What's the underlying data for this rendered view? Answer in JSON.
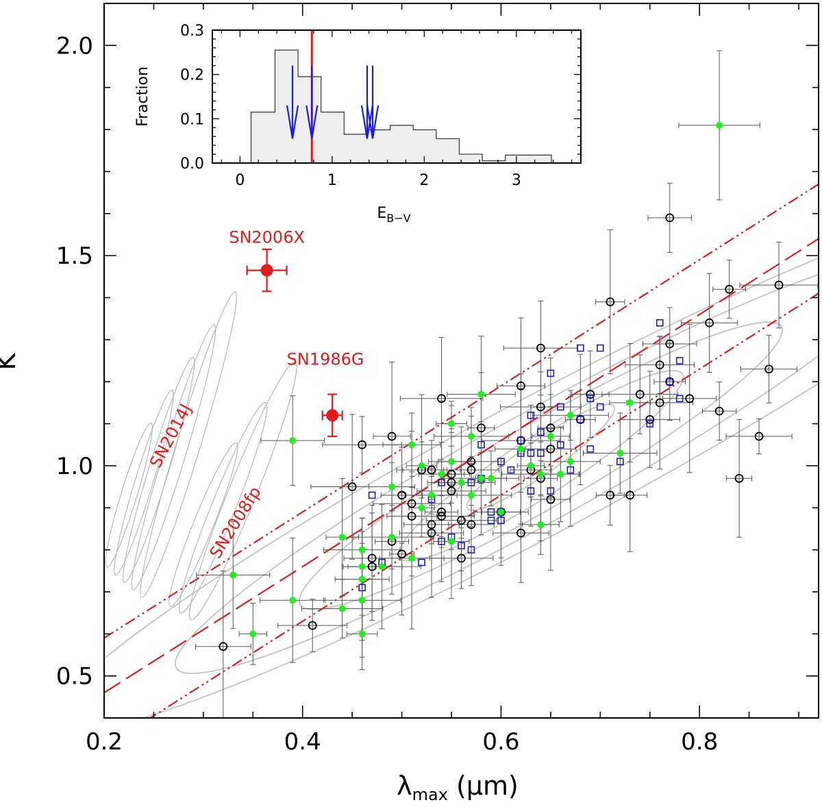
{
  "chart_data": {
    "type": "scatter",
    "xlabel": "λmax (μm)",
    "xlabel_main": "λ",
    "xlabel_sub": "max",
    "xlabel_unit": "(μm)",
    "ylabel": "K",
    "xlim": [
      0.2,
      0.92
    ],
    "ylim": [
      0.4,
      2.1
    ],
    "xticks": [
      0.2,
      0.4,
      0.6,
      0.8
    ],
    "xtick_labels": [
      "0.2",
      "0.4",
      "0.6",
      "0.8"
    ],
    "yticks": [
      0.5,
      1.0,
      1.5,
      2.0
    ],
    "ytick_labels": [
      "0.5",
      "1.0",
      "1.5",
      "2.0"
    ],
    "colors": {
      "red": "#e41a1c",
      "blue": "#1a1acc",
      "green": "#22ee22",
      "grey": "#c8c8c8",
      "inset_fill": "#eeeeee",
      "inset_arrow": "#1a1aee"
    },
    "annotations": [
      {
        "text": "SN2006X",
        "x": 0.364,
        "y": 1.53,
        "rotate": 0
      },
      {
        "text": "SN1986G",
        "x": 0.423,
        "y": 1.24,
        "rotate": 0
      },
      {
        "text": "SN2014J",
        "x": 0.272,
        "y": 1.065,
        "rotate": -62
      },
      {
        "text": "SN2008fp",
        "x": 0.337,
        "y": 0.858,
        "rotate": -58
      }
    ],
    "highlight_points": [
      {
        "name": "SN2006X",
        "x": 0.364,
        "y": 1.465,
        "xerr": 0.02,
        "yerr": 0.05
      },
      {
        "name": "SN1986G",
        "x": 0.43,
        "y": 1.12,
        "xerr": 0.01,
        "yerr": 0.05
      }
    ],
    "lines": {
      "central": {
        "style": "long-dash",
        "slope": 1.5,
        "intercept": 0.16
      },
      "bounds": [
        {
          "style": "dash-dot-dot",
          "slope": 1.5,
          "intercept": 0.29
        },
        {
          "style": "dash-dot-dot",
          "slope": 1.5,
          "intercept": 0.03
        }
      ]
    },
    "contours": [
      {
        "cx": 0.64,
        "cy": 1.02,
        "rx": 0.09,
        "ry": 0.04,
        "angle": 35
      },
      {
        "cx": 0.64,
        "cy": 1.0,
        "rx": 0.17,
        "ry": 0.07,
        "angle": 33
      },
      {
        "cx": 0.64,
        "cy": 1.0,
        "rx": 0.28,
        "ry": 0.1,
        "angle": 30
      },
      {
        "cx": 0.64,
        "cy": 1.0,
        "rx": 0.42,
        "ry": 0.13,
        "angle": 29
      },
      {
        "cx": 0.64,
        "cy": 1.0,
        "rx": 0.56,
        "ry": 0.16,
        "angle": 28
      }
    ],
    "series": [
      {
        "name": "open circles",
        "marker": "open-circle",
        "points": [
          [
            0.32,
            0.57
          ],
          [
            0.41,
            0.62
          ],
          [
            0.45,
            0.95
          ],
          [
            0.46,
            1.05
          ],
          [
            0.47,
            0.78
          ],
          [
            0.47,
            0.76
          ],
          [
            0.49,
            0.82
          ],
          [
            0.49,
            1.07
          ],
          [
            0.5,
            0.79
          ],
          [
            0.5,
            0.93
          ],
          [
            0.51,
            0.88
          ],
          [
            0.51,
            0.91
          ],
          [
            0.52,
            0.99
          ],
          [
            0.53,
            0.99
          ],
          [
            0.53,
            0.86
          ],
          [
            0.53,
            0.84
          ],
          [
            0.54,
            0.88
          ],
          [
            0.54,
            0.89
          ],
          [
            0.54,
            1.16
          ],
          [
            0.55,
            0.96
          ],
          [
            0.55,
            0.94
          ],
          [
            0.55,
            0.98
          ],
          [
            0.56,
            0.87
          ],
          [
            0.56,
            0.78
          ],
          [
            0.57,
            1.01
          ],
          [
            0.57,
            0.99
          ],
          [
            0.57,
            0.86
          ],
          [
            0.58,
            1.09
          ],
          [
            0.6,
            0.89
          ],
          [
            0.62,
            0.84
          ],
          [
            0.62,
            1.06
          ],
          [
            0.62,
            1.19
          ],
          [
            0.63,
            0.99
          ],
          [
            0.64,
            0.97
          ],
          [
            0.64,
            1.14
          ],
          [
            0.64,
            1.28
          ],
          [
            0.65,
            1.09
          ],
          [
            0.65,
            1.04
          ],
          [
            0.65,
            0.92
          ],
          [
            0.68,
            1.11
          ],
          [
            0.69,
            1.17
          ],
          [
            0.71,
            1.39
          ],
          [
            0.71,
            0.93
          ],
          [
            0.73,
            0.93
          ],
          [
            0.74,
            1.17
          ],
          [
            0.75,
            1.11
          ],
          [
            0.76,
            1.15
          ],
          [
            0.76,
            1.24
          ],
          [
            0.77,
            1.2
          ],
          [
            0.77,
            1.29
          ],
          [
            0.77,
            1.59
          ],
          [
            0.79,
            1.16
          ],
          [
            0.81,
            1.34
          ],
          [
            0.82,
            1.13
          ],
          [
            0.83,
            1.42
          ],
          [
            0.84,
            0.97
          ],
          [
            0.86,
            1.07
          ],
          [
            0.87,
            1.23
          ],
          [
            0.88,
            1.43
          ]
        ]
      },
      {
        "name": "open squares",
        "marker": "open-square",
        "points": [
          [
            0.46,
            0.71
          ],
          [
            0.47,
            0.93
          ],
          [
            0.48,
            0.77
          ],
          [
            0.52,
            0.77
          ],
          [
            0.53,
            0.92
          ],
          [
            0.54,
            0.82
          ],
          [
            0.54,
            0.96
          ],
          [
            0.55,
            0.83
          ],
          [
            0.56,
            0.81
          ],
          [
            0.57,
            0.8
          ],
          [
            0.57,
            0.96
          ],
          [
            0.58,
            0.97
          ],
          [
            0.58,
            1.05
          ],
          [
            0.59,
            0.89
          ],
          [
            0.59,
            0.87
          ],
          [
            0.6,
            0.87
          ],
          [
            0.6,
            0.89
          ],
          [
            0.6,
            1.01
          ],
          [
            0.61,
            0.99
          ],
          [
            0.62,
            1.03
          ],
          [
            0.62,
            1.06
          ],
          [
            0.63,
            0.94
          ],
          [
            0.63,
            1.03
          ],
          [
            0.63,
            1.12
          ],
          [
            0.64,
            1.08
          ],
          [
            0.64,
            1.03
          ],
          [
            0.65,
            0.94
          ],
          [
            0.65,
            1.22
          ],
          [
            0.66,
            1.14
          ],
          [
            0.66,
            1.05
          ],
          [
            0.67,
            0.99
          ],
          [
            0.68,
            1.28
          ],
          [
            0.68,
            1.11
          ],
          [
            0.69,
            1.04
          ],
          [
            0.69,
            1.16
          ],
          [
            0.7,
            1.14
          ],
          [
            0.7,
            1.28
          ],
          [
            0.72,
            1.01
          ],
          [
            0.75,
            1.1
          ],
          [
            0.76,
            1.34
          ],
          [
            0.77,
            1.2
          ],
          [
            0.78,
            1.25
          ],
          [
            0.78,
            1.16
          ]
        ]
      },
      {
        "name": "filled circles",
        "marker": "filled-circle",
        "points": [
          [
            0.33,
            0.74
          ],
          [
            0.35,
            0.6
          ],
          [
            0.39,
            0.68
          ],
          [
            0.39,
            1.06
          ],
          [
            0.44,
            0.66
          ],
          [
            0.44,
            0.83
          ],
          [
            0.46,
            0.6
          ],
          [
            0.46,
            0.68
          ],
          [
            0.46,
            0.73
          ],
          [
            0.46,
            0.76
          ],
          [
            0.46,
            0.8
          ],
          [
            0.48,
            0.76
          ],
          [
            0.49,
            0.83
          ],
          [
            0.49,
            0.95
          ],
          [
            0.51,
            0.78
          ],
          [
            0.51,
            1.05
          ],
          [
            0.52,
            0.9
          ],
          [
            0.52,
            1.0
          ],
          [
            0.53,
            0.93
          ],
          [
            0.54,
            0.98
          ],
          [
            0.55,
            0.82
          ],
          [
            0.55,
            1.01
          ],
          [
            0.55,
            1.1
          ],
          [
            0.56,
            0.96
          ],
          [
            0.57,
            1.07
          ],
          [
            0.57,
            0.93
          ],
          [
            0.58,
            0.97
          ],
          [
            0.58,
            1.17
          ],
          [
            0.59,
            0.97
          ],
          [
            0.6,
            0.89
          ],
          [
            0.62,
            1.04
          ],
          [
            0.63,
            1.0
          ],
          [
            0.64,
            0.86
          ],
          [
            0.64,
            0.98
          ],
          [
            0.65,
            1.07
          ],
          [
            0.66,
            0.98
          ],
          [
            0.67,
            1.01
          ],
          [
            0.67,
            1.12
          ],
          [
            0.72,
            1.03
          ],
          [
            0.73,
            1.15
          ],
          [
            0.82,
            1.81
          ]
        ]
      }
    ],
    "inset": {
      "type": "histogram",
      "xlabel": "EB-V",
      "xlabel_main": "E",
      "xlabel_sub": "B−V",
      "ylabel": "Fraction",
      "xlim": [
        -0.3,
        3.7
      ],
      "ylim": [
        0,
        0.3
      ],
      "xticks": [
        0,
        1,
        2,
        3
      ],
      "xtick_labels": [
        "0",
        "1",
        "2",
        "3"
      ],
      "yticks": [
        0,
        0.1,
        0.2,
        0.3
      ],
      "ytick_labels": [
        "0.0",
        "0.1",
        "0.2",
        "0.3"
      ],
      "bin_edges": [
        0.12,
        0.38,
        0.63,
        0.88,
        1.13,
        1.38,
        1.63,
        1.88,
        2.13,
        2.38,
        2.63,
        2.88,
        3.38
      ],
      "values": [
        0.115,
        0.255,
        0.195,
        0.115,
        0.065,
        0.075,
        0.085,
        0.075,
        0.055,
        0.02,
        0.005,
        0.018
      ],
      "red_line_x": 0.78,
      "arrows": [
        0.57,
        0.78,
        1.38,
        1.44
      ]
    }
  }
}
